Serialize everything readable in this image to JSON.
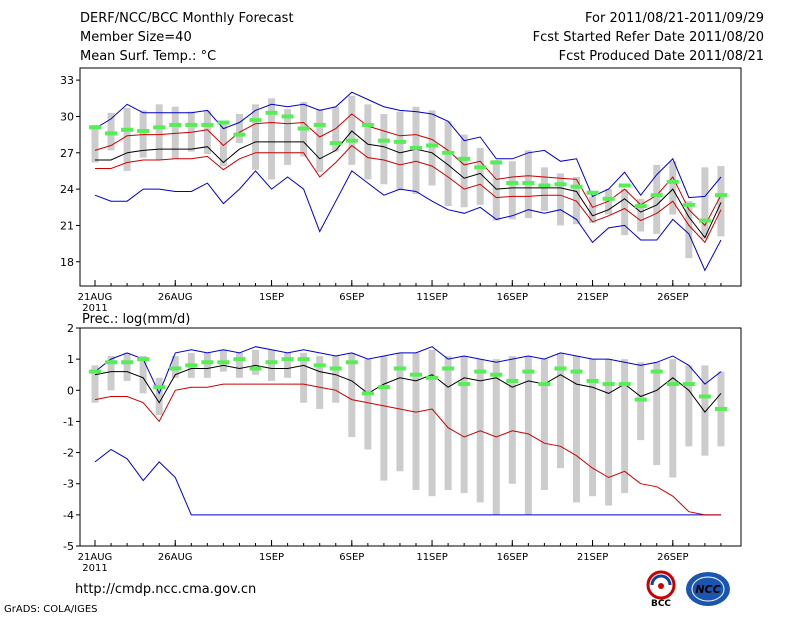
{
  "header": {
    "title": "DERF/NCC/BCC Monthly Forecast",
    "member_size": "Member Size=40",
    "variable": "Mean Surf. Temp.: °C",
    "period": "For 2011/08/21-2011/09/29",
    "fcst_started": "Fcst Started Refer Date 2011/08/20",
    "fcst_produced": "Fcst Produced Date 2011/08/21"
  },
  "footer": {
    "url": "http://cmdp.ncc.cma.gov.cn",
    "grads": "GrADS: COLA/IGES",
    "logo_left_text": "BCC",
    "logo_right_text": "NCC"
  },
  "colors": {
    "max_min": "#0000cc",
    "pct": "#cc0000",
    "mean": "#000000",
    "box": "#cccccc",
    "obs": "#55ee55"
  },
  "chart_data": [
    {
      "type": "line",
      "title": "Mean Surf. Temp.: °C",
      "ylim": [
        16,
        34
      ],
      "yticks": [
        18,
        21,
        24,
        27,
        30,
        33
      ],
      "xtick_labels": [
        "21AUG",
        "26AUG",
        "1SEP",
        "6SEP",
        "11SEP",
        "16SEP",
        "21SEP",
        "26SEP"
      ],
      "xtick_days": [
        0,
        5,
        11,
        16,
        21,
        26,
        31,
        36
      ],
      "year_label": "2011",
      "days": 40,
      "series": [
        {
          "name": "max",
          "values": [
            29.0,
            29.8,
            31.0,
            30.3,
            30.3,
            30.3,
            30.3,
            30.5,
            29.0,
            29.5,
            30.5,
            31.0,
            30.8,
            31.0,
            30.5,
            30.8,
            32.0,
            31.4,
            30.8,
            30.5,
            30.4,
            30.2,
            29.6,
            28.0,
            28.3,
            26.5,
            26.5,
            27.0,
            27.2,
            26.3,
            26.5,
            23.4,
            24.0,
            25.4,
            23.5,
            25.2,
            26.5,
            23.3,
            23.4,
            25.0
          ]
        },
        {
          "name": "p90",
          "values": [
            27.2,
            27.6,
            28.4,
            28.5,
            28.5,
            28.6,
            28.7,
            28.9,
            27.6,
            28.7,
            29.4,
            29.5,
            29.4,
            29.5,
            28.3,
            29.0,
            30.2,
            29.2,
            28.8,
            28.4,
            28.5,
            28.1,
            27.2,
            26.0,
            26.3,
            24.8,
            25.0,
            25.1,
            25.0,
            24.9,
            24.8,
            22.5,
            23.0,
            24.0,
            22.7,
            23.5,
            25.0,
            22.3,
            21.0,
            23.5
          ]
        },
        {
          "name": "mean",
          "values": [
            26.4,
            26.4,
            27.0,
            27.2,
            27.3,
            27.3,
            27.3,
            27.5,
            26.2,
            27.3,
            27.9,
            27.9,
            27.9,
            27.9,
            26.5,
            27.2,
            28.8,
            27.7,
            27.5,
            27.0,
            27.3,
            27.0,
            26.0,
            24.9,
            25.3,
            24.0,
            24.1,
            24.1,
            24.1,
            24.1,
            23.8,
            21.8,
            22.3,
            23.2,
            22.1,
            22.7,
            24.0,
            21.7,
            20.0,
            22.9
          ]
        },
        {
          "name": "p10",
          "values": [
            25.7,
            25.7,
            26.2,
            26.4,
            26.4,
            26.5,
            26.5,
            26.7,
            25.6,
            26.5,
            27.0,
            27.0,
            27.0,
            27.0,
            25.0,
            26.2,
            27.6,
            26.6,
            26.4,
            26.0,
            26.3,
            25.9,
            25.0,
            24.0,
            24.4,
            23.3,
            23.4,
            23.4,
            23.5,
            23.5,
            23.0,
            21.3,
            21.8,
            22.4,
            21.4,
            22.0,
            23.0,
            21.0,
            19.6,
            22.3
          ]
        },
        {
          "name": "min",
          "values": [
            23.5,
            23.0,
            23.0,
            24.0,
            24.0,
            23.8,
            23.8,
            24.5,
            22.8,
            24.0,
            25.5,
            24.0,
            25.0,
            24.0,
            20.5,
            23.0,
            25.5,
            24.5,
            23.5,
            24.0,
            23.8,
            23.0,
            22.3,
            22.0,
            22.5,
            21.5,
            21.8,
            22.3,
            22.0,
            22.3,
            21.5,
            19.6,
            20.8,
            21.0,
            19.8,
            19.8,
            21.5,
            20.3,
            17.3,
            19.8
          ]
        },
        {
          "name": "obs",
          "values": [
            29.1,
            28.6,
            28.9,
            28.8,
            29.1,
            29.3,
            29.3,
            29.3,
            29.5,
            28.5,
            29.7,
            30.3,
            30.0,
            29.0,
            29.3,
            27.8,
            28.0,
            29.3,
            28.0,
            27.9,
            27.4,
            27.6,
            27.0,
            26.5,
            25.8,
            26.2,
            24.5,
            24.5,
            24.3,
            24.4,
            24.2,
            23.7,
            23.2,
            24.3,
            22.6,
            23.5,
            24.6,
            22.7,
            21.4,
            23.5
          ]
        },
        {
          "name": "box_high",
          "values": [
            29.3,
            30.3,
            30.7,
            30.5,
            31.0,
            30.8,
            30.4,
            30.5,
            29.5,
            30.2,
            31.0,
            31.5,
            30.6,
            31.2,
            30.6,
            30.8,
            31.7,
            31.0,
            30.2,
            30.4,
            30.8,
            30.5,
            29.6,
            28.5,
            27.4,
            26.4,
            26.3,
            27.2,
            25.8,
            25.3,
            25.0,
            23.4,
            24.0,
            24.0,
            23.2,
            26.0,
            26.3,
            23.0,
            25.8,
            25.9
          ]
        },
        {
          "name": "box_low",
          "values": [
            26.2,
            27.2,
            25.5,
            26.6,
            26.4,
            26.5,
            27.1,
            26.9,
            25.9,
            27.8,
            25.6,
            24.8,
            26.0,
            26.7,
            25.4,
            27.1,
            26.0,
            24.8,
            24.4,
            23.9,
            23.6,
            24.3,
            22.6,
            22.5,
            22.7,
            21.4,
            21.5,
            21.6,
            22.2,
            21.0,
            21.1,
            21.2,
            21.9,
            20.2,
            20.5,
            20.3,
            21.9,
            18.3,
            19.9,
            20.1
          ]
        }
      ]
    },
    {
      "type": "line",
      "title": "Prec.: log(mm/d)",
      "ylim": [
        -5,
        2
      ],
      "yticks": [
        -5,
        -4,
        -3,
        -2,
        -1,
        0,
        1,
        2
      ],
      "xtick_labels": [
        "21AUG",
        "26AUG",
        "1SEP",
        "6SEP",
        "11SEP",
        "16SEP",
        "21SEP",
        "26SEP"
      ],
      "xtick_days": [
        0,
        5,
        11,
        16,
        21,
        26,
        31,
        36
      ],
      "year_label": "2011",
      "days": 40,
      "series": [
        {
          "name": "max",
          "values": [
            0.6,
            1.0,
            1.2,
            1.0,
            -0.1,
            1.2,
            1.3,
            1.2,
            1.3,
            1.2,
            1.4,
            1.3,
            1.2,
            1.3,
            1.2,
            1.1,
            1.2,
            1.0,
            1.1,
            1.2,
            1.2,
            1.4,
            1.0,
            1.1,
            1.0,
            0.9,
            1.0,
            1.1,
            1.0,
            1.2,
            1.1,
            1.0,
            1.0,
            0.9,
            0.8,
            0.9,
            1.1,
            0.8,
            0.2,
            0.6
          ]
        },
        {
          "name": "mean",
          "values": [
            0.5,
            0.6,
            0.6,
            0.4,
            -0.4,
            0.5,
            0.7,
            0.7,
            0.8,
            0.7,
            0.8,
            0.7,
            0.7,
            0.8,
            0.6,
            0.5,
            0.3,
            -0.1,
            0.2,
            0.4,
            0.3,
            0.5,
            0.1,
            0.4,
            0.3,
            0.4,
            0.1,
            0.3,
            0.2,
            0.5,
            0.2,
            0.1,
            -0.1,
            0.2,
            -0.2,
            0.0,
            0.4,
            0.0,
            -0.7,
            -0.1
          ]
        },
        {
          "name": "p10",
          "values": [
            -0.3,
            -0.2,
            -0.2,
            -0.4,
            -1.0,
            0.0,
            0.1,
            0.1,
            0.2,
            0.2,
            0.2,
            0.2,
            0.2,
            0.2,
            0.1,
            0.0,
            -0.3,
            -0.4,
            -0.5,
            -0.6,
            -0.7,
            -0.6,
            -1.2,
            -1.5,
            -1.3,
            -1.5,
            -1.3,
            -1.4,
            -1.7,
            -1.8,
            -2.1,
            -2.5,
            -2.8,
            -2.6,
            -3.0,
            -3.1,
            -3.4,
            -3.9,
            -4.0,
            -4.0
          ]
        },
        {
          "name": "min",
          "values": [
            -2.3,
            -1.9,
            -2.2,
            -2.9,
            -2.3,
            -2.8,
            -4.0,
            -4.0,
            -4.0,
            -4.0,
            -4.0,
            -4.0,
            -4.0,
            -4.0,
            -4.0,
            -4.0,
            -4.0,
            -4.0,
            -4.0,
            -4.0,
            -4.0,
            -4.0,
            -4.0,
            -4.0,
            -4.0,
            -4.0,
            -4.0,
            -4.0,
            -4.0,
            -4.0,
            -4.0,
            -4.0,
            -4.0,
            -4.0,
            -4.0,
            -4.0,
            -4.0,
            -4.0,
            -4.0,
            -4.0
          ]
        },
        {
          "name": "obs",
          "values": [
            0.6,
            0.9,
            0.9,
            1.0,
            0.1,
            0.7,
            0.8,
            0.9,
            0.9,
            1.0,
            0.7,
            0.9,
            1.0,
            1.0,
            0.8,
            0.7,
            0.9,
            -0.1,
            0.1,
            0.7,
            0.5,
            0.4,
            0.7,
            0.2,
            0.6,
            0.5,
            0.3,
            0.6,
            0.2,
            0.7,
            0.6,
            0.3,
            0.2,
            0.2,
            -0.3,
            0.6,
            0.2,
            0.2,
            -0.2,
            -0.6
          ]
        },
        {
          "name": "box_high",
          "values": [
            0.8,
            1.1,
            1.2,
            1.1,
            0.4,
            1.1,
            1.2,
            1.2,
            1.3,
            1.2,
            1.3,
            1.3,
            1.2,
            1.2,
            1.1,
            1.1,
            1.2,
            1.0,
            1.1,
            1.2,
            1.2,
            1.3,
            1.1,
            1.1,
            1.0,
            1.0,
            1.1,
            1.1,
            1.0,
            1.2,
            1.1,
            1.0,
            1.0,
            1.0,
            0.9,
            0.9,
            1.0,
            0.8,
            0.8,
            0.6
          ]
        },
        {
          "name": "box_low",
          "values": [
            -0.4,
            0.0,
            0.3,
            -0.1,
            -0.8,
            0.4,
            0.4,
            0.4,
            0.6,
            0.4,
            0.5,
            0.3,
            0.4,
            -0.4,
            -0.6,
            -0.4,
            -1.5,
            -1.9,
            -2.9,
            -2.6,
            -3.2,
            -3.4,
            -3.2,
            -3.3,
            -3.6,
            -4.0,
            -3.0,
            -4.0,
            -3.2,
            -2.5,
            -3.6,
            -3.4,
            -3.7,
            -3.3,
            -1.6,
            -2.4,
            -2.8,
            -1.8,
            -2.1,
            -1.8
          ]
        }
      ]
    }
  ]
}
